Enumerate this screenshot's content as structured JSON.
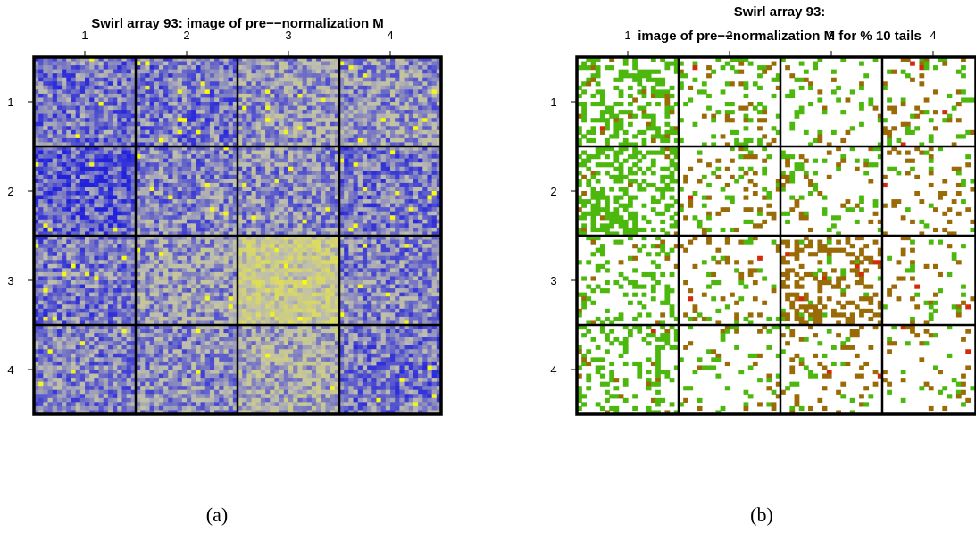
{
  "colors": {
    "panel_a": {
      "low": "#2222dd",
      "mid": "#bdbdb0",
      "high": "#ffff00"
    },
    "panel_b": {
      "background": "#ffffff",
      "low_tail": "#4cb80e",
      "high_tail": "#9a6a06",
      "extreme": "#d42a0a"
    },
    "grid_lines": "#000000"
  },
  "chart_data": [
    {
      "type": "heatmap",
      "panel": "a",
      "title": "Swirl array 93: image of pre−−normalization M",
      "caption": "(a)",
      "xlabel": "",
      "ylabel": "",
      "x_ticks": [
        "1",
        "2",
        "3",
        "4"
      ],
      "y_ticks": [
        "1",
        "2",
        "3",
        "4"
      ],
      "grid": {
        "rows": 4,
        "cols": 4
      },
      "color_scale": [
        "low",
        "mid",
        "high"
      ],
      "mean_level_by_block": [
        [
          0.3,
          0.3,
          0.42,
          0.4
        ],
        [
          0.22,
          0.36,
          0.38,
          0.3
        ],
        [
          0.3,
          0.42,
          0.72,
          0.34
        ],
        [
          0.34,
          0.38,
          0.5,
          0.3
        ]
      ]
    },
    {
      "type": "heatmap",
      "panel": "b",
      "title_lines": [
        "Swirl array 93:",
        "image of pre−−normalization M for % 10 tails"
      ],
      "caption": "(b)",
      "xlabel": "",
      "ylabel": "",
      "x_ticks": [
        "1",
        "2",
        "3",
        "4"
      ],
      "y_ticks": [
        "1",
        "2",
        "3",
        "4"
      ],
      "grid": {
        "rows": 4,
        "cols": 4
      },
      "legend": "none",
      "low_tail_density_by_block": [
        [
          0.38,
          0.14,
          0.1,
          0.08
        ],
        [
          0.42,
          0.08,
          0.08,
          0.06
        ],
        [
          0.2,
          0.06,
          0.04,
          0.06
        ],
        [
          0.28,
          0.06,
          0.06,
          0.04
        ]
      ],
      "high_tail_density_by_block": [
        [
          0.04,
          0.08,
          0.04,
          0.08
        ],
        [
          0.02,
          0.1,
          0.08,
          0.12
        ],
        [
          0.03,
          0.1,
          0.32,
          0.1
        ],
        [
          0.03,
          0.04,
          0.12,
          0.08
        ]
      ]
    }
  ]
}
